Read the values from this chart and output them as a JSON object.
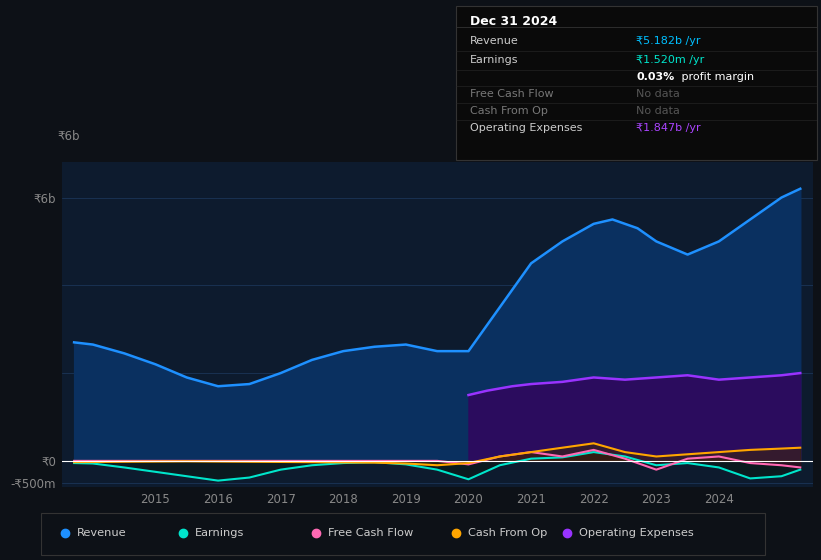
{
  "bg_color": "#0d1117",
  "chart_bg": "#0d1b2e",
  "grid_color": "#1e3a5f",
  "ylim": [
    -600000000,
    6800000000
  ],
  "yticks": [
    -500000000,
    0,
    2000000000,
    4000000000,
    6000000000
  ],
  "ytick_labels": [
    "-₹500m",
    "₹0",
    "",
    "",
    "₹6b"
  ],
  "y0_label": "₹0",
  "yneg_label": "-₹500m",
  "y6b_label": "₹6b",
  "xlim": [
    2013.5,
    2025.5
  ],
  "xticks": [
    2015,
    2016,
    2017,
    2018,
    2019,
    2020,
    2021,
    2022,
    2023,
    2024
  ],
  "revenue_color": "#1e90ff",
  "revenue_fill": "#0a3060",
  "earnings_color": "#00e5cc",
  "earnings_fill": "#0a1a15",
  "fcf_color": "#ff69b4",
  "fcf_fill": "#3d0a1e",
  "cashfromop_color": "#ffa500",
  "cashfromop_fill": "#3d2800",
  "opex_color": "#9933ff",
  "opex_fill": "#2d0a5e",
  "zero_line_color": "#ffffff",
  "grid_line_color": "#1e3a5f",
  "tick_color": "#888888",
  "legend_items": [
    {
      "label": "Revenue",
      "color": "#1e90ff"
    },
    {
      "label": "Earnings",
      "color": "#00e5cc"
    },
    {
      "label": "Free Cash Flow",
      "color": "#ff69b4"
    },
    {
      "label": "Cash From Op",
      "color": "#ffa500"
    },
    {
      "label": "Operating Expenses",
      "color": "#9933ff"
    }
  ],
  "infobox": {
    "date": "Dec 31 2024",
    "rows": [
      {
        "label": "Revenue",
        "value": "₹5.182b /yr",
        "value_color": "#00bfff",
        "label_color": "#cccccc"
      },
      {
        "label": "Earnings",
        "value": "₹1.520m /yr",
        "value_color": "#00e5cc",
        "label_color": "#cccccc"
      },
      {
        "label": "",
        "value": "0.03% profit margin",
        "value_color": "#ffffff",
        "label_color": "#cccccc"
      },
      {
        "label": "Free Cash Flow",
        "value": "No data",
        "value_color": "#555555",
        "label_color": "#777777"
      },
      {
        "label": "Cash From Op",
        "value": "No data",
        "value_color": "#555555",
        "label_color": "#777777"
      },
      {
        "label": "Operating Expenses",
        "value": "₹1.847b /yr",
        "value_color": "#aa44ff",
        "label_color": "#cccccc"
      }
    ]
  },
  "revenue_x": [
    2013.7,
    2014.0,
    2014.5,
    2015.0,
    2015.5,
    2016.0,
    2016.5,
    2017.0,
    2017.5,
    2018.0,
    2018.5,
    2019.0,
    2019.5,
    2020.0,
    2020.5,
    2021.0,
    2021.5,
    2022.0,
    2022.3,
    2022.7,
    2023.0,
    2023.5,
    2024.0,
    2024.5,
    2025.0,
    2025.3
  ],
  "revenue_y": [
    2700000000,
    2650000000,
    2450000000,
    2200000000,
    1900000000,
    1700000000,
    1750000000,
    2000000000,
    2300000000,
    2500000000,
    2600000000,
    2650000000,
    2500000000,
    2500000000,
    3500000000,
    4500000000,
    5000000000,
    5400000000,
    5500000000,
    5300000000,
    5000000000,
    4700000000,
    5000000000,
    5500000000,
    6000000000,
    6200000000
  ],
  "earnings_x": [
    2013.7,
    2014.0,
    2014.5,
    2015.0,
    2015.5,
    2016.0,
    2016.5,
    2017.0,
    2017.5,
    2018.0,
    2018.5,
    2019.0,
    2019.5,
    2020.0,
    2020.5,
    2021.0,
    2021.5,
    2022.0,
    2022.5,
    2023.0,
    2023.5,
    2024.0,
    2024.5,
    2025.0,
    2025.3
  ],
  "earnings_y": [
    -50000000,
    -60000000,
    -150000000,
    -250000000,
    -350000000,
    -450000000,
    -380000000,
    -200000000,
    -100000000,
    -50000000,
    -30000000,
    -80000000,
    -200000000,
    -420000000,
    -100000000,
    50000000,
    80000000,
    200000000,
    100000000,
    -100000000,
    -50000000,
    -150000000,
    -400000000,
    -350000000,
    -200000000
  ],
  "fcf_x": [
    2013.7,
    2014.5,
    2015.5,
    2016.5,
    2017.5,
    2018.5,
    2019.5,
    2020.0,
    2020.5,
    2021.0,
    2021.5,
    2022.0,
    2022.5,
    2023.0,
    2023.5,
    2024.0,
    2024.5,
    2025.0,
    2025.3
  ],
  "fcf_y": [
    0,
    0,
    0,
    0,
    0,
    0,
    0,
    -80000000,
    100000000,
    200000000,
    100000000,
    250000000,
    50000000,
    -200000000,
    50000000,
    100000000,
    -50000000,
    -100000000,
    -150000000
  ],
  "cashfromop_x": [
    2013.7,
    2014.5,
    2015.5,
    2016.5,
    2017.5,
    2018.5,
    2019.0,
    2019.5,
    2020.0,
    2020.5,
    2021.0,
    2021.5,
    2022.0,
    2022.5,
    2023.0,
    2023.5,
    2024.0,
    2024.5,
    2025.0,
    2025.3
  ],
  "cashfromop_y": [
    -30000000,
    -20000000,
    -10000000,
    -20000000,
    -30000000,
    -40000000,
    -60000000,
    -100000000,
    -50000000,
    100000000,
    200000000,
    300000000,
    400000000,
    200000000,
    100000000,
    150000000,
    200000000,
    250000000,
    280000000,
    300000000
  ],
  "opex_x": [
    2020.0,
    2020.3,
    2020.7,
    2021.0,
    2021.5,
    2022.0,
    2022.5,
    2023.0,
    2023.5,
    2024.0,
    2024.5,
    2025.0,
    2025.3
  ],
  "opex_y": [
    1500000000,
    1600000000,
    1700000000,
    1750000000,
    1800000000,
    1900000000,
    1850000000,
    1900000000,
    1950000000,
    1850000000,
    1900000000,
    1950000000,
    2000000000
  ]
}
